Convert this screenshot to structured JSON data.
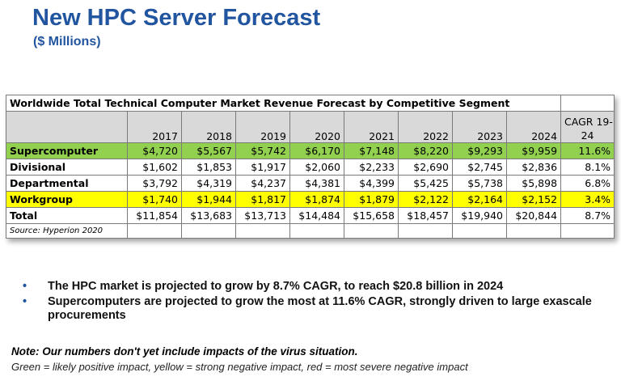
{
  "slide": {
    "title": "New HPC Server Forecast",
    "subtitle": "($ Millions)"
  },
  "table": {
    "caption": "Worldwide Total Technical Computer Market Revenue Forecast by Competitive Segment",
    "headers": [
      "",
      "2017",
      "2018",
      "2019",
      "2020",
      "2021",
      "2022",
      "2023",
      "2024"
    ],
    "cagr_header_line1": "CAGR 19-",
    "cagr_header_line2": "24",
    "rows": [
      {
        "label": "Supercomputer",
        "values": [
          "$4,720",
          "$5,567",
          "$5,742",
          "$6,170",
          "$7,148",
          "$8,220",
          "$9,293",
          "$9,959"
        ],
        "cagr": "11.6%",
        "highlight": "#92d050"
      },
      {
        "label": "Divisional",
        "values": [
          "$1,602",
          "$1,853",
          "$1,917",
          "$2,060",
          "$2,233",
          "$2,690",
          "$2,745",
          "$2,836"
        ],
        "cagr": "8.1%",
        "highlight": "#ffffff"
      },
      {
        "label": "Departmental",
        "values": [
          "$3,792",
          "$4,319",
          "$4,237",
          "$4,381",
          "$4,399",
          "$5,425",
          "$5,738",
          "$5,898"
        ],
        "cagr": "6.8%",
        "highlight": "#ffffff"
      },
      {
        "label": "Workgroup",
        "values": [
          "$1,740",
          "$1,944",
          "$1,817",
          "$1,874",
          "$1,879",
          "$2,122",
          "$2,164",
          "$2,152"
        ],
        "cagr": "3.4%",
        "highlight": "#ffff00"
      },
      {
        "label": "Total",
        "values": [
          "$11,854",
          "$13,683",
          "$13,713",
          "$14,484",
          "$15,658",
          "$18,457",
          "$19,940",
          "$20,844"
        ],
        "cagr": "8.7%",
        "highlight": "#ffffff"
      }
    ],
    "source": "Source: Hyperion 2020"
  },
  "bullets": [
    "The HPC market is projected to grow by 8.7% CAGR, to reach $20.8 billion in 2024",
    "Supercomputers are projected to grow the most at 11.6% CAGR, strongly driven to large exascale procurements"
  ],
  "bullet_glyph": "•",
  "note": "Note: Our numbers don't yet include impacts of the virus situation.",
  "legend": "Green = likely positive impact, yellow = strong negative impact, red = most severe negative impact",
  "colors": {
    "title": "#2255a0",
    "header_gray": "#d9d9d9",
    "green_highlight": "#92d050",
    "yellow_highlight": "#ffff00"
  }
}
